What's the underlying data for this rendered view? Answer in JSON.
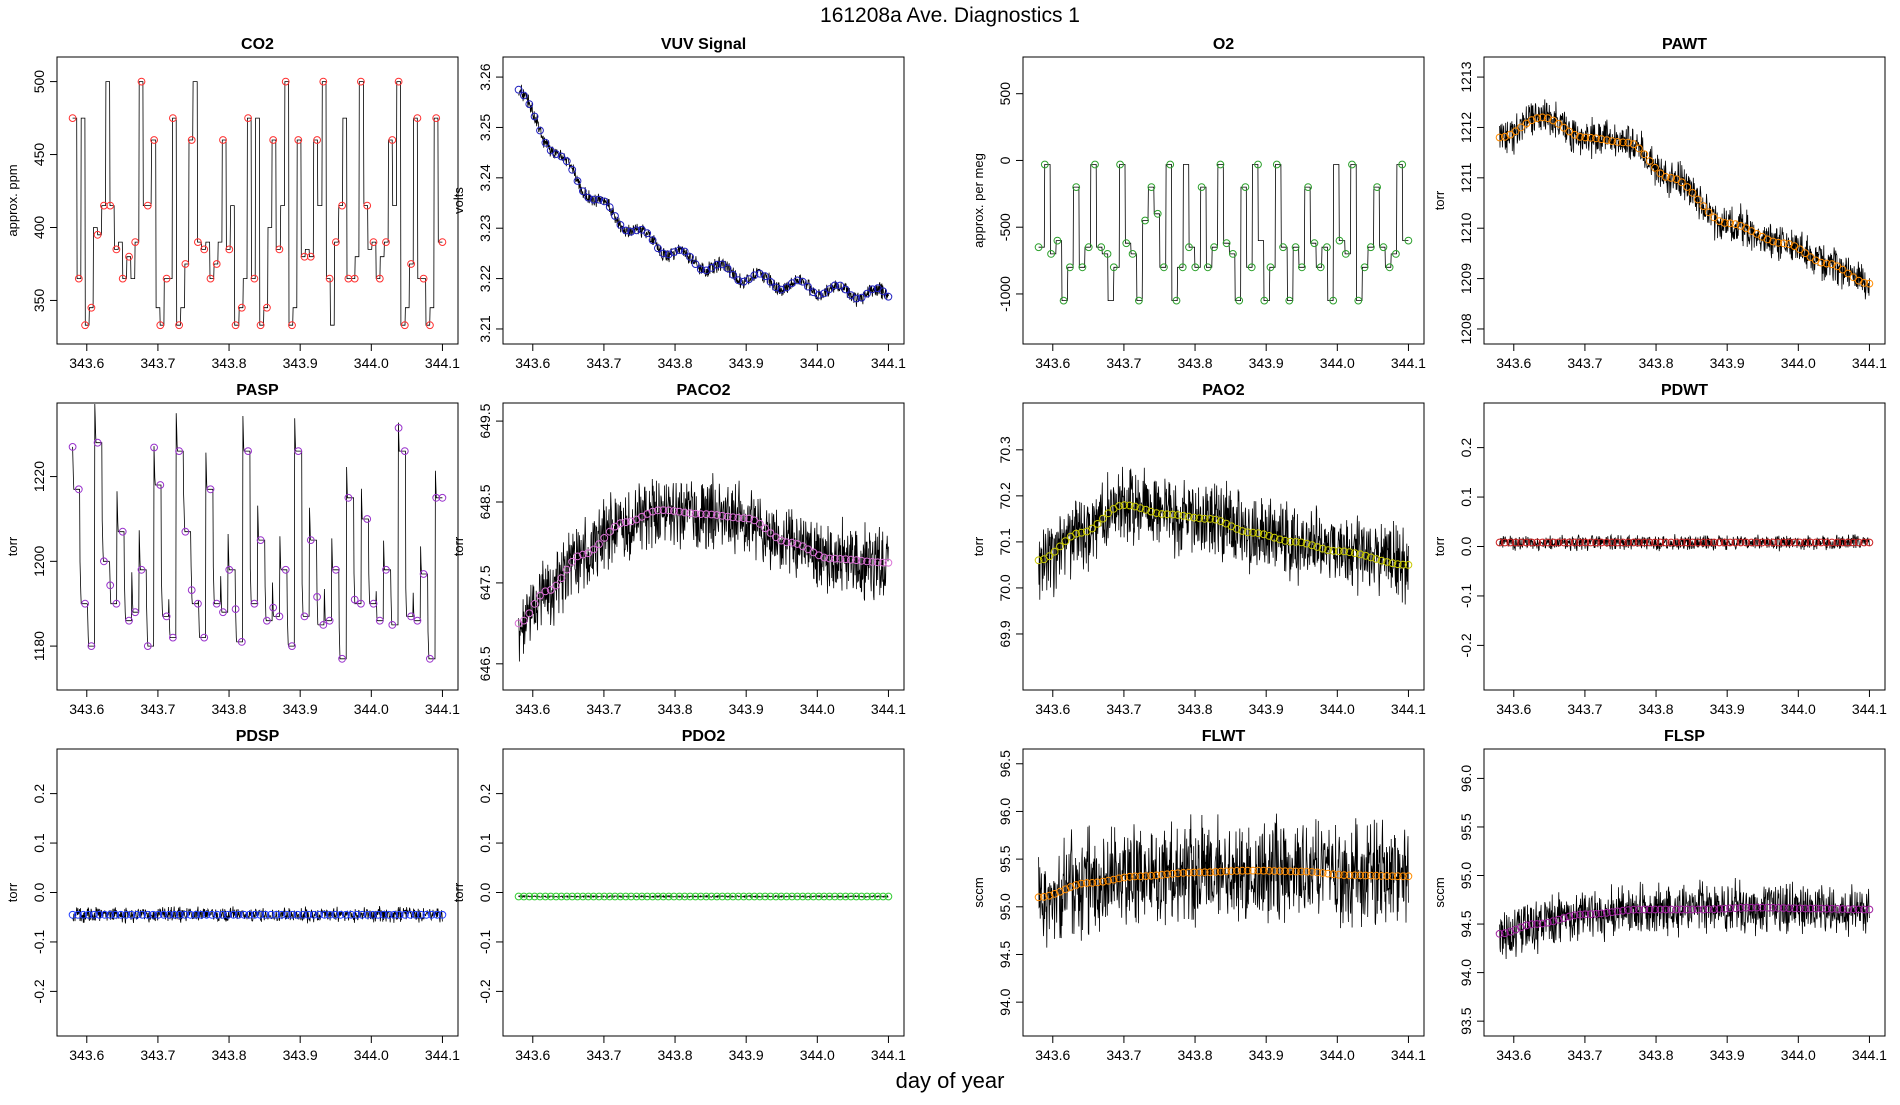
{
  "figure": {
    "title": "161208a   Ave. Diagnostics 1",
    "xlabel": "day of year"
  },
  "chart_data": [
    {
      "type": "line",
      "title": "CO2",
      "ylabel": "approx. ppm",
      "xlim": [
        343.575,
        344.105
      ],
      "ylim": [
        327,
        510
      ],
      "xticks": [
        "343.6",
        "343.7",
        "343.8",
        "343.9",
        "344.0",
        "344.1"
      ],
      "yticks": [
        "350",
        "400",
        "450",
        "500"
      ],
      "marker_color": "#ff3030",
      "pattern": "step",
      "levels": [
        475,
        365,
        475,
        333,
        345,
        400,
        395,
        415,
        500,
        415,
        385,
        390,
        365,
        380,
        365,
        390,
        500,
        415,
        415,
        460,
        345,
        333,
        365,
        365,
        475,
        333,
        345,
        375,
        460,
        500,
        390,
        385,
        390,
        365,
        375,
        390,
        460,
        385,
        415,
        333,
        345,
        365,
        475,
        365,
        475,
        333,
        345,
        400,
        460,
        385,
        415,
        500,
        333,
        345,
        460,
        380,
        385,
        380,
        460,
        415,
        500,
        365,
        333,
        390,
        415,
        475,
        365,
        365,
        380,
        500,
        415,
        385,
        390,
        365,
        380,
        390,
        460,
        415,
        500,
        333,
        345,
        375,
        475,
        365,
        365,
        333,
        345,
        475,
        390
      ],
      "noise": 0
    },
    {
      "type": "line",
      "title": "VUV Signal",
      "ylabel": "volts",
      "xlim": [
        343.575,
        344.105
      ],
      "ylim": [
        3.209,
        3.262
      ],
      "xticks": [
        "343.6",
        "343.7",
        "343.8",
        "343.9",
        "344.0",
        "344.1"
      ],
      "yticks": [
        "3.21",
        "3.22",
        "3.23",
        "3.24",
        "3.25",
        "3.26"
      ],
      "marker_color": "#2020c0",
      "pattern": "decay",
      "start": 3.2575,
      "end": 3.2155,
      "decay_rate": 3.5,
      "noise": 0.0018
    },
    {
      "type": "line",
      "title": "O2",
      "ylabel": "approx. per meg",
      "xlim": [
        343.575,
        344.105
      ],
      "ylim": [
        -1300,
        700
      ],
      "xticks": [
        "343.6",
        "343.7",
        "343.8",
        "343.9",
        "344.0",
        "344.1"
      ],
      "yticks": [
        "-1000",
        "-500",
        "0",
        "500"
      ],
      "marker_color": "#2ca02c",
      "pattern": "step",
      "levels": [
        -650,
        -30,
        -700,
        -600,
        -1050,
        -800,
        -200,
        -800,
        -650,
        -30,
        -650,
        -700,
        -1050,
        -800,
        -30,
        -620,
        -700,
        -1050,
        -450,
        -200,
        -400,
        -800,
        -30,
        -1050,
        -800,
        -30,
        -650,
        -800,
        -200,
        -800,
        -650,
        -30,
        -620,
        -700,
        -1050,
        -200,
        -800,
        -30,
        -600,
        -1050,
        -800,
        -30,
        -650,
        -1050,
        -650,
        -800,
        -200,
        -620,
        -800,
        -650,
        -1050,
        -30,
        -600,
        -700,
        -30,
        -1050,
        -800,
        -650,
        -200,
        -650,
        -800,
        -700,
        -30,
        -600
      ],
      "noise": 0
    },
    {
      "type": "line",
      "title": "PAWT",
      "ylabel": "torr",
      "xlim": [
        343.575,
        344.105
      ],
      "ylim": [
        1207.9,
        1213.2
      ],
      "xticks": [
        "343.6",
        "343.7",
        "343.8",
        "343.9",
        "344.0",
        "344.1"
      ],
      "yticks": [
        "1208",
        "1209",
        "1210",
        "1211",
        "1212",
        "1213"
      ],
      "marker_color": "#ff8c00",
      "pattern": "arch",
      "knots": [
        [
          343.58,
          1211.8
        ],
        [
          343.64,
          1212.2
        ],
        [
          343.7,
          1211.8
        ],
        [
          343.76,
          1211.7
        ],
        [
          343.82,
          1211.0
        ],
        [
          343.9,
          1210.1
        ],
        [
          343.98,
          1209.7
        ],
        [
          344.04,
          1209.3
        ],
        [
          344.1,
          1208.9
        ]
      ],
      "noise": 0.45
    },
    {
      "type": "line",
      "title": "PASP",
      "ylabel": "torr",
      "xlim": [
        343.575,
        344.105
      ],
      "ylim": [
        1172,
        1235
      ],
      "xticks": [
        "343.6",
        "343.7",
        "343.8",
        "343.9",
        "344.0",
        "344.1"
      ],
      "yticks": [
        "1180",
        "1200",
        "1220"
      ],
      "marker_color": "#9932cc",
      "pattern": "spike",
      "levels": [
        1217,
        1190,
        1180,
        1228,
        1200,
        1190,
        1207,
        1186,
        1188,
        1198,
        1180,
        1218,
        1187,
        1182,
        1226,
        1207,
        1190,
        1182,
        1217,
        1190,
        1188,
        1198,
        1181,
        1226,
        1190,
        1205,
        1186,
        1187,
        1198,
        1180,
        1226,
        1187,
        1205,
        1185,
        1186,
        1198,
        1177,
        1215,
        1190,
        1210,
        1190,
        1186,
        1198,
        1185,
        1226,
        1187,
        1186,
        1197,
        1177,
        1215
      ],
      "noise": 0
    },
    {
      "type": "line",
      "title": "PACO2",
      "ylabel": "torr",
      "xlim": [
        343.575,
        344.105
      ],
      "ylim": [
        646.3,
        649.6
      ],
      "xticks": [
        "343.6",
        "343.7",
        "343.8",
        "343.9",
        "344.0",
        "344.1"
      ],
      "yticks": [
        "646.5",
        "647.5",
        "648.5",
        "649.5"
      ],
      "marker_color": "#da70d6",
      "pattern": "arch",
      "knots": [
        [
          343.58,
          647.0
        ],
        [
          343.62,
          647.4
        ],
        [
          343.67,
          647.85
        ],
        [
          343.73,
          648.25
        ],
        [
          343.78,
          648.4
        ],
        [
          343.84,
          648.35
        ],
        [
          343.9,
          648.3
        ],
        [
          343.96,
          648.0
        ],
        [
          344.02,
          647.8
        ],
        [
          344.1,
          647.75
        ]
      ],
      "noise": 0.55
    },
    {
      "type": "line",
      "title": "PAO2",
      "ylabel": "torr",
      "xlim": [
        343.575,
        344.105
      ],
      "ylim": [
        69.8,
        70.38
      ],
      "xticks": [
        "343.6",
        "343.7",
        "343.8",
        "343.9",
        "344.0",
        "344.1"
      ],
      "yticks": [
        "69.9",
        "70.0",
        "70.1",
        "70.2",
        "70.3"
      ],
      "marker_color": "#c8c800",
      "pattern": "arch",
      "knots": [
        [
          343.58,
          70.06
        ],
        [
          343.64,
          70.12
        ],
        [
          343.7,
          70.18
        ],
        [
          343.76,
          70.16
        ],
        [
          343.82,
          70.15
        ],
        [
          343.88,
          70.12
        ],
        [
          343.94,
          70.1
        ],
        [
          344.0,
          70.08
        ],
        [
          344.1,
          70.05
        ]
      ],
      "noise": 0.1
    },
    {
      "type": "line",
      "title": "PDWT",
      "ylabel": "torr",
      "xlim": [
        343.575,
        344.105
      ],
      "ylim": [
        -0.27,
        0.27
      ],
      "xticks": [
        "343.6",
        "343.7",
        "343.8",
        "343.9",
        "344.0",
        "344.1"
      ],
      "yticks": [
        "-0.2",
        "-0.1",
        "0.0",
        "0.1",
        "0.2"
      ],
      "marker_color": "#cc2020",
      "pattern": "flat",
      "value": 0.008,
      "noise": 0.018
    },
    {
      "type": "line",
      "title": "PDSP",
      "ylabel": "torr",
      "xlim": [
        343.575,
        344.105
      ],
      "ylim": [
        -0.27,
        0.27
      ],
      "xticks": [
        "343.6",
        "343.7",
        "343.8",
        "343.9",
        "344.0",
        "344.1"
      ],
      "yticks": [
        "-0.2",
        "-0.1",
        "0.0",
        "0.1",
        "0.2"
      ],
      "marker_color": "#1e3cff",
      "pattern": "flat",
      "value": -0.045,
      "noise": 0.018
    },
    {
      "type": "line",
      "title": "PDO2",
      "ylabel": "torr",
      "xlim": [
        343.575,
        344.105
      ],
      "ylim": [
        -0.27,
        0.27
      ],
      "xticks": [
        "343.6",
        "343.7",
        "343.8",
        "343.9",
        "344.0",
        "344.1"
      ],
      "yticks": [
        "-0.2",
        "-0.1",
        "0.0",
        "0.1",
        "0.2"
      ],
      "marker_color": "#32cd32",
      "pattern": "flat",
      "value": -0.008,
      "noise": 0.002
    },
    {
      "type": "line",
      "title": "FLWT",
      "ylabel": "sccm",
      "xlim": [
        343.575,
        344.105
      ],
      "ylim": [
        93.75,
        96.55
      ],
      "xticks": [
        "343.6",
        "343.7",
        "343.8",
        "343.9",
        "344.0",
        "344.1"
      ],
      "yticks": [
        "94.0",
        "94.5",
        "95.0",
        "95.5",
        "96.0",
        "96.5"
      ],
      "marker_color": "#ff8c00",
      "pattern": "arch",
      "knots": [
        [
          343.58,
          95.1
        ],
        [
          343.65,
          95.25
        ],
        [
          343.72,
          95.32
        ],
        [
          343.8,
          95.36
        ],
        [
          343.88,
          95.38
        ],
        [
          343.95,
          95.37
        ],
        [
          344.02,
          95.33
        ],
        [
          344.1,
          95.32
        ]
      ],
      "noise": 0.65
    },
    {
      "type": "line",
      "title": "FLSP",
      "ylabel": "sccm",
      "xlim": [
        343.575,
        344.105
      ],
      "ylim": [
        93.45,
        96.2
      ],
      "xticks": [
        "343.6",
        "343.7",
        "343.8",
        "343.9",
        "344.0",
        "344.1"
      ],
      "yticks": [
        "93.5",
        "94.0",
        "94.5",
        "95.0",
        "95.5",
        "96.0"
      ],
      "marker_color": "#a020a0",
      "pattern": "arch",
      "knots": [
        [
          343.58,
          94.4
        ],
        [
          343.63,
          94.5
        ],
        [
          343.7,
          94.6
        ],
        [
          343.78,
          94.65
        ],
        [
          343.86,
          94.65
        ],
        [
          343.94,
          94.67
        ],
        [
          344.02,
          94.66
        ],
        [
          344.1,
          94.65
        ]
      ],
      "noise": 0.32
    }
  ]
}
